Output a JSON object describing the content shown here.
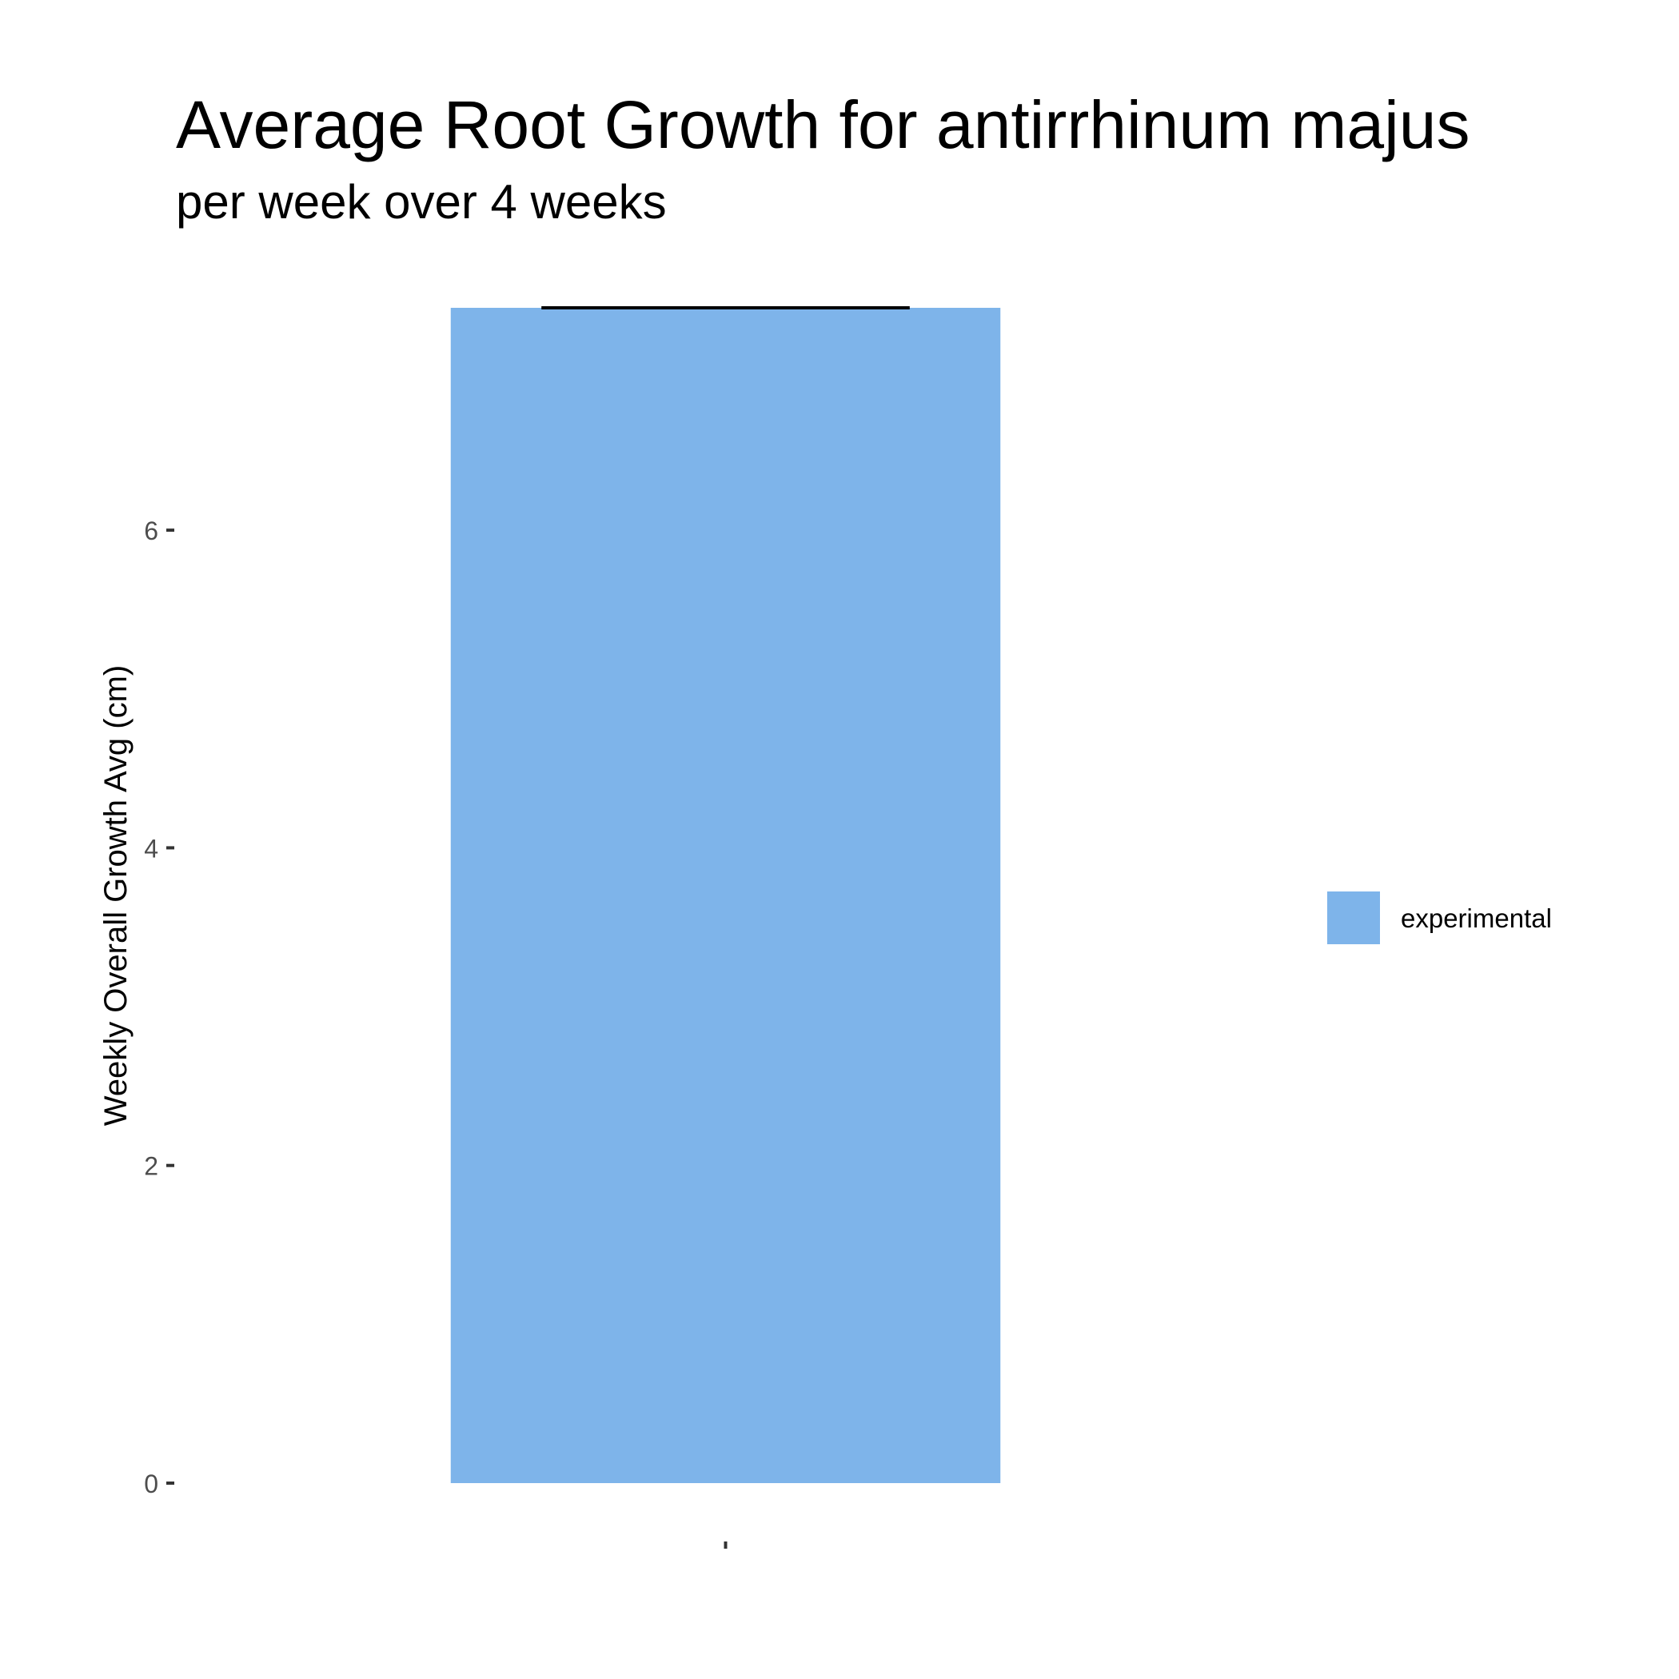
{
  "chart_data": {
    "type": "bar",
    "title": "Average Root Growth for antirrhinum majus",
    "subtitle": "per week over 4 weeks",
    "xlabel": "",
    "ylabel": "Weekly Overall Growth Avg (cm)",
    "categories": [
      ""
    ],
    "series": [
      {
        "name": "experimental",
        "values": [
          7.4
        ],
        "error_upper": [
          7.4
        ],
        "color": "#7EB4EA"
      }
    ],
    "ylim": [
      0,
      7.4
    ],
    "yticks": [
      0,
      2,
      4,
      6
    ],
    "grid": false,
    "legend_position": "right",
    "colors": {
      "bar": "#7EB4EA",
      "errorbar": "#000000",
      "tick_label": "#4D4D4D",
      "text": "#000000"
    }
  }
}
